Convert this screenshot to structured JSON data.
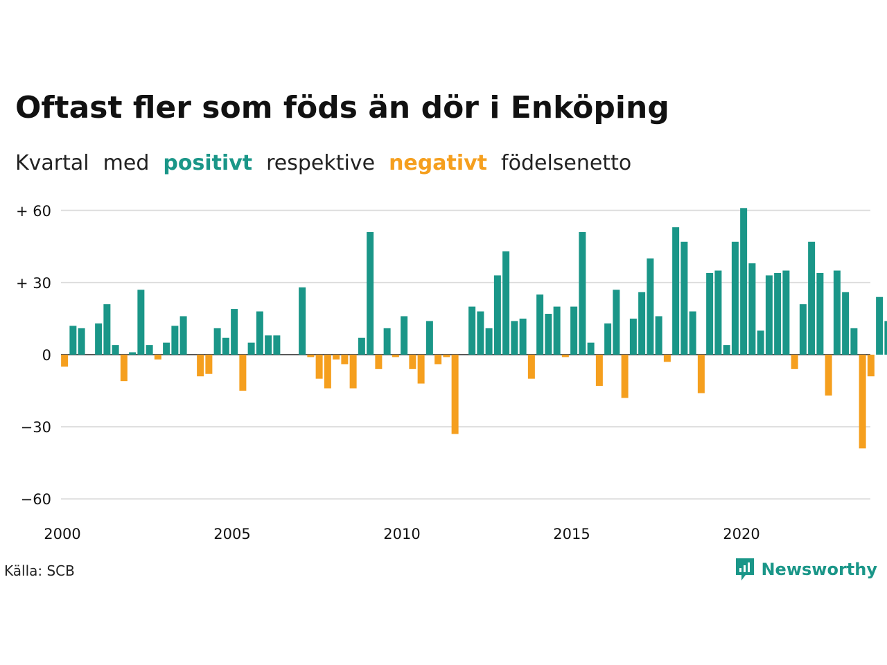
{
  "title": "Oftast fler som föds än dör i Enköping",
  "subtitle": {
    "w1": "Kvartal",
    "w2": "med",
    "positive": "positivt",
    "w3": "respektive",
    "negative": "negativt",
    "w4": "födelsenetto"
  },
  "source": "Källa: SCB",
  "brand": {
    "name": "Newsworthy",
    "icon": "newsworthy-logo-icon"
  },
  "colors": {
    "positive": "#1a9688",
    "negative": "#f59f1e",
    "grid": "#dddddd",
    "text": "#111111"
  },
  "chart_data": {
    "type": "bar",
    "x_start": 2000,
    "periods_per_year": 4,
    "xlim": [
      2000,
      2024
    ],
    "x_ticks": [
      2000,
      2005,
      2010,
      2015,
      2020
    ],
    "x_tick_labels": [
      "2000",
      "2005",
      "2010",
      "2015",
      "2020"
    ],
    "ylim": [
      -60,
      60
    ],
    "y_ticks": [
      60,
      30,
      0,
      -30,
      -60
    ],
    "y_tick_labels": [
      "+ 60",
      "+ 30",
      "0",
      "−30",
      "−60"
    ],
    "grid": true,
    "xlabel": "",
    "ylabel": "",
    "values": [
      -5,
      12,
      11,
      0,
      13,
      21,
      4,
      -11,
      1,
      27,
      4,
      -2,
      5,
      12,
      16,
      0,
      -9,
      -8,
      11,
      7,
      19,
      -15,
      5,
      18,
      8,
      8,
      0,
      0,
      28,
      -1,
      -10,
      -14,
      -2,
      -4,
      -14,
      7,
      51,
      -6,
      11,
      -1,
      16,
      -6,
      -12,
      14,
      -4,
      -1,
      -33,
      0,
      20,
      18,
      11,
      33,
      43,
      14,
      15,
      -10,
      25,
      17,
      20,
      -1,
      20,
      51,
      5,
      -13,
      13,
      27,
      -18,
      15,
      26,
      40,
      16,
      -3,
      53,
      47,
      18,
      -16,
      34,
      35,
      4,
      47,
      61,
      38,
      10,
      33,
      34,
      35,
      -6,
      21,
      47,
      34,
      -17,
      35,
      26,
      11,
      -39,
      -9,
      24,
      14
    ]
  }
}
